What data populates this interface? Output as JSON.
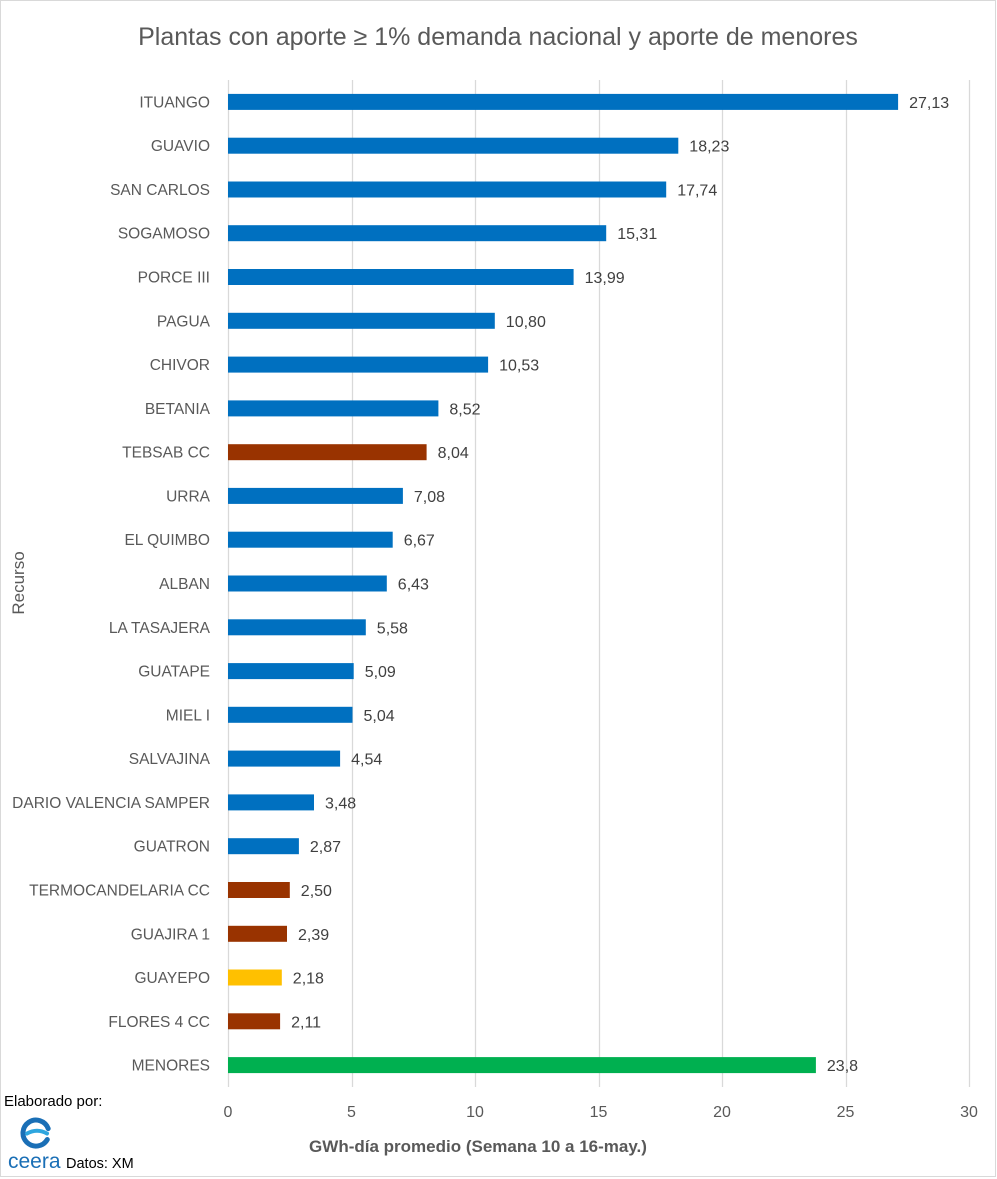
{
  "chart_data": {
    "type": "bar",
    "orientation": "horizontal",
    "title": "Plantas con aporte ≥ 1% demanda nacional y aporte de menores",
    "xlabel": "GWh-día promedio (Semana 10 a 16-may.)",
    "ylabel": "Recurso",
    "xlim": [
      0,
      30
    ],
    "xticks": [
      0,
      5,
      10,
      15,
      20,
      25,
      30
    ],
    "grid": true,
    "categories": [
      "ITUANGO",
      "GUAVIO",
      "SAN CARLOS",
      "SOGAMOSO",
      "PORCE III",
      "PAGUA",
      "CHIVOR",
      "BETANIA",
      "TEBSAB CC",
      "URRA",
      "EL QUIMBO",
      "ALBAN",
      "LA TASAJERA",
      "GUATAPE",
      "MIEL I",
      "SALVAJINA",
      "DARIO VALENCIA SAMPER",
      "GUATRON",
      "TERMOCANDELARIA CC",
      "GUAJIRA 1",
      "GUAYEPO",
      "FLORES 4 CC",
      "MENORES"
    ],
    "values": [
      27.13,
      18.23,
      17.74,
      15.31,
      13.99,
      10.8,
      10.53,
      8.52,
      8.04,
      7.08,
      6.67,
      6.43,
      5.58,
      5.09,
      5.04,
      4.54,
      3.48,
      2.87,
      2.5,
      2.39,
      2.18,
      2.11,
      23.8
    ],
    "value_labels": [
      "27,13",
      "18,23",
      "17,74",
      "15,31",
      "13,99",
      "10,80",
      "10,53",
      "8,52",
      "8,04",
      "7,08",
      "6,67",
      "6,43",
      "5,58",
      "5,09",
      "5,04",
      "4,54",
      "3,48",
      "2,87",
      "2,50",
      "2,39",
      "2,18",
      "2,11",
      "23,8"
    ],
    "bar_colors": [
      "#0070C0",
      "#0070C0",
      "#0070C0",
      "#0070C0",
      "#0070C0",
      "#0070C0",
      "#0070C0",
      "#0070C0",
      "#993300",
      "#0070C0",
      "#0070C0",
      "#0070C0",
      "#0070C0",
      "#0070C0",
      "#0070C0",
      "#0070C0",
      "#0070C0",
      "#0070C0",
      "#993300",
      "#993300",
      "#FFC000",
      "#993300",
      "#00B050"
    ],
    "gridline_color": "#D9D9D9"
  },
  "footer": {
    "credit": "Elaborado por:",
    "logo": {
      "icon": "ceera-logo-icon",
      "text": "ceera",
      "color": "#1A6FB6",
      "accent_color": "#2EA6DF"
    },
    "source": "Datos: XM"
  }
}
